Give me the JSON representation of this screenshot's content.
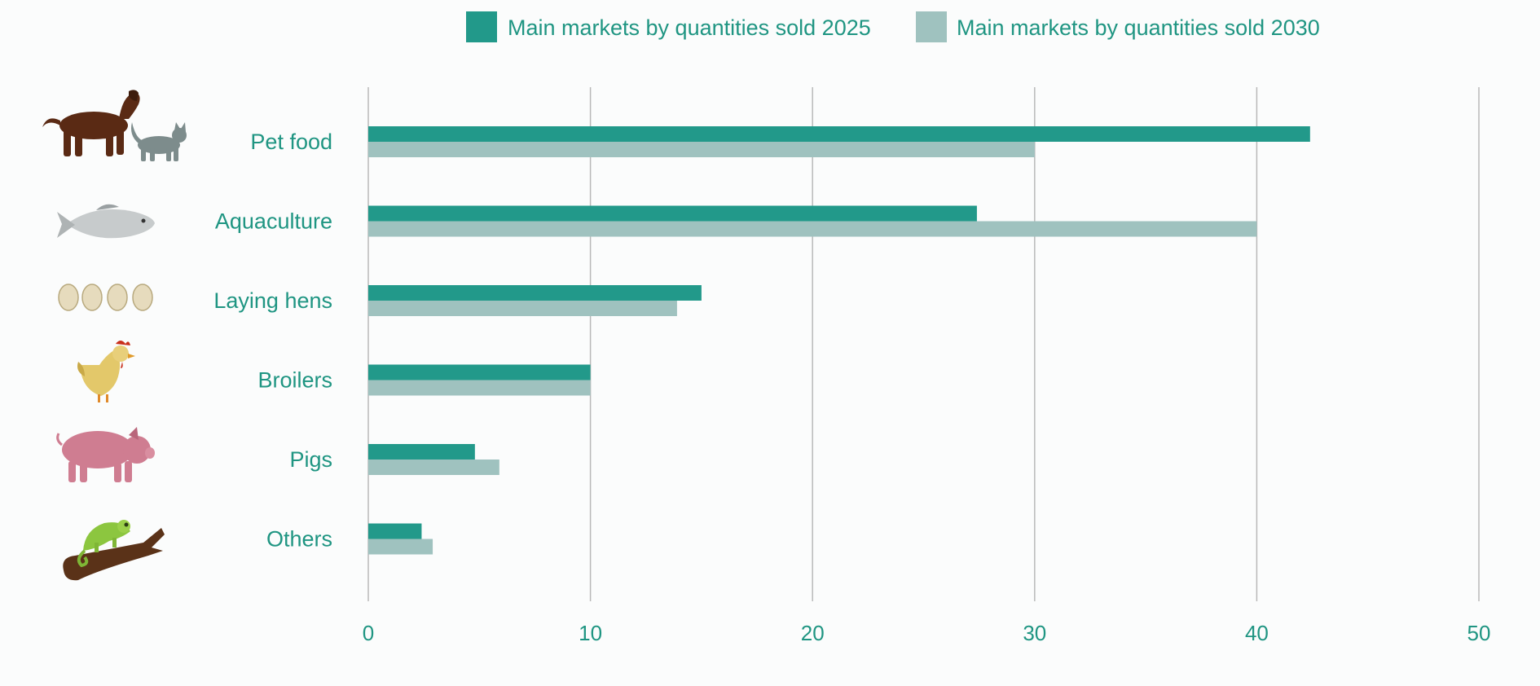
{
  "colors": {
    "series_2025": "#22998a",
    "series_2030": "#9fc2bf",
    "text": "#1f9582",
    "grid": "#b9b9b9",
    "background": "#fbfcfc"
  },
  "legend": {
    "items": [
      {
        "label": "Main markets by quantities sold 2025",
        "color": "#22998a"
      },
      {
        "label": "Main markets by quantities sold 2030",
        "color": "#9fc2bf"
      }
    ]
  },
  "category_icons": [
    "dog-and-cat",
    "fish",
    "eggs",
    "chicken",
    "pig",
    "chameleon-on-branch"
  ],
  "chart_data": {
    "type": "bar",
    "orientation": "horizontal",
    "categories": [
      "Pet food",
      "Aquaculture",
      "Laying hens",
      "Broilers",
      "Pigs",
      "Others"
    ],
    "series": [
      {
        "name": "Main markets by quantities sold 2025",
        "values": [
          42.4,
          27.4,
          15,
          10,
          4.8,
          2.4
        ]
      },
      {
        "name": "Main markets by quantities sold 2030",
        "values": [
          30,
          40,
          13.9,
          10,
          5.9,
          2.9
        ]
      }
    ],
    "xlim": [
      0,
      50
    ],
    "xticks": [
      0,
      10,
      20,
      30,
      40,
      50
    ],
    "grid": "vertical",
    "legend_position": "top"
  }
}
